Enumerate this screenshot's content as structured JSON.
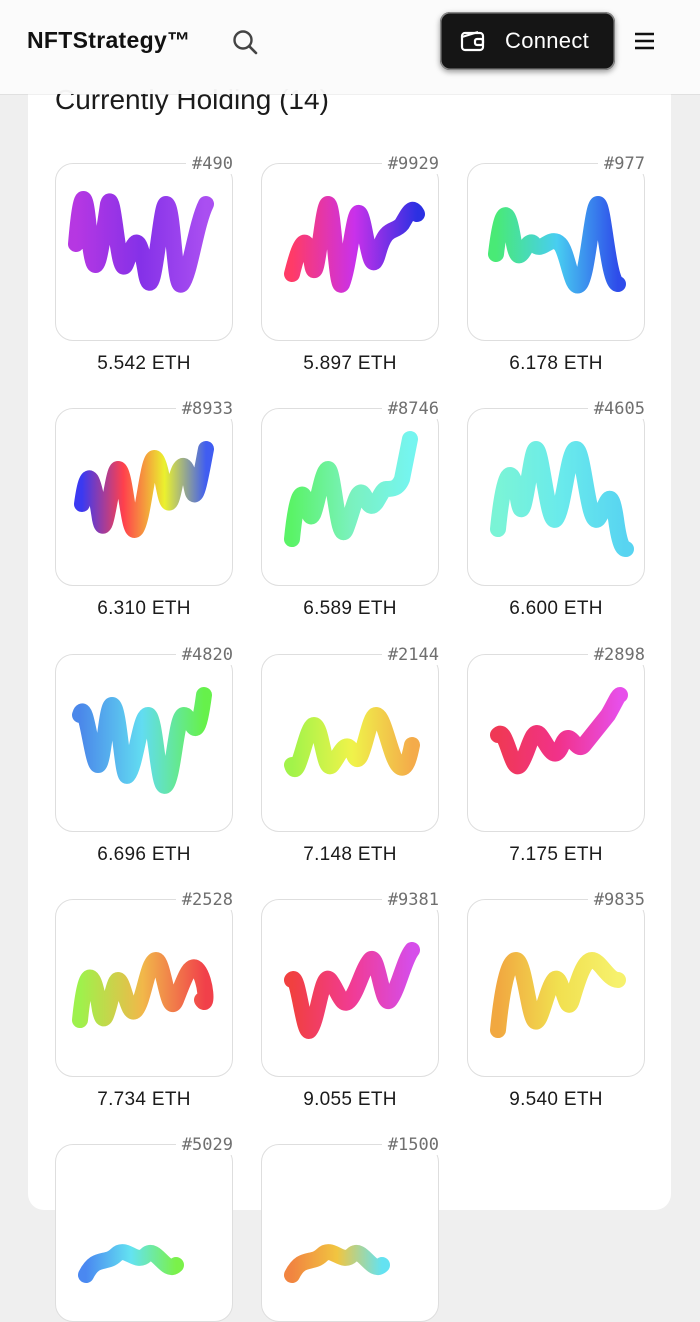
{
  "header": {
    "brand": "NFTStrategy™",
    "connect_label": "Connect",
    "icons": [
      "search-icon",
      "wallet-icon",
      "menu-icon"
    ]
  },
  "section": {
    "title": "Currently Holding (14)"
  },
  "holdings": [
    {
      "id": "#490",
      "price": "5.542 ETH",
      "colors": [
        "#b026e0",
        "#7a1fe6",
        "#a340f0"
      ]
    },
    {
      "id": "#9929",
      "price": "5.897 ETH",
      "colors": [
        "#ff2a5a",
        "#c51fe8",
        "#1a1ee0"
      ]
    },
    {
      "id": "#977",
      "price": "6.178 ETH",
      "colors": [
        "#39e86a",
        "#38c9f0",
        "#1c3ce8"
      ]
    },
    {
      "id": "#8933",
      "price": "6.310 ETH",
      "colors": [
        "#2a28f0",
        "#ff2f3d",
        "#e9f01c",
        "#2f4ff0"
      ]
    },
    {
      "id": "#8746",
      "price": "6.589 ETH",
      "colors": [
        "#4cf25a",
        "#6ff0b8",
        "#69f4ee"
      ]
    },
    {
      "id": "#4605",
      "price": "6.600 ETH",
      "colors": [
        "#6ff3d3",
        "#5ce8ea",
        "#49d0f0"
      ]
    },
    {
      "id": "#4820",
      "price": "6.696 ETH",
      "colors": [
        "#3b7de8",
        "#54d9f0",
        "#59f03b"
      ]
    },
    {
      "id": "#2144",
      "price": "7.148 ETH",
      "colors": [
        "#9af23a",
        "#eef23a",
        "#f3a43a"
      ]
    },
    {
      "id": "#2898",
      "price": "7.175 ETH",
      "colors": [
        "#ee2746",
        "#f02080",
        "#e540e8"
      ]
    },
    {
      "id": "#2528",
      "price": "7.734 ETH",
      "colors": [
        "#96f03c",
        "#f0b13a",
        "#f02f3a"
      ]
    },
    {
      "id": "#9381",
      "price": "9.055 ETH",
      "colors": [
        "#f02f2f",
        "#f02a8a",
        "#d23ee8"
      ]
    },
    {
      "id": "#9835",
      "price": "9.540 ETH",
      "colors": [
        "#f0a030",
        "#f0dd40",
        "#f5f060"
      ]
    },
    {
      "id": "#5029",
      "price": "",
      "colors": [
        "#3a7ef0",
        "#56e0f0",
        "#6ff03a"
      ]
    },
    {
      "id": "#1500",
      "price": "",
      "colors": [
        "#f07a30",
        "#f0c030",
        "#56e0f0"
      ]
    }
  ]
}
